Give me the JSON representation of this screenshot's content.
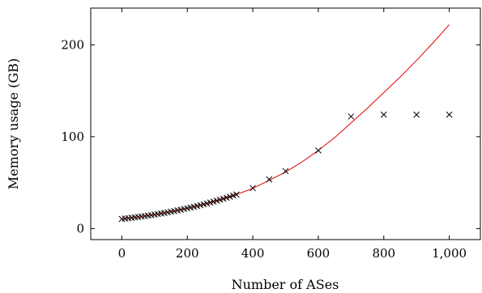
{
  "chart_data": {
    "type": "scatter",
    "xlabel": "Number of ASes",
    "ylabel": "Memory usage (GB)",
    "xlim": [
      -95,
      1095
    ],
    "ylim": [
      -12,
      240
    ],
    "x_ticks": [
      0,
      200,
      400,
      600,
      800,
      1000
    ],
    "x_tick_labels": [
      "0",
      "200",
      "400",
      "600",
      "800",
      "1,000"
    ],
    "y_ticks": [
      0,
      100,
      200
    ],
    "y_tick_labels": [
      "0",
      "100",
      "200"
    ],
    "grid": false,
    "series": [
      {
        "marker": "x",
        "color": "#000000",
        "x": [
          0,
          10,
          20,
          30,
          40,
          50,
          60,
          70,
          80,
          90,
          100,
          110,
          120,
          130,
          140,
          150,
          160,
          170,
          180,
          190,
          200,
          210,
          220,
          230,
          240,
          250,
          260,
          270,
          280,
          290,
          300,
          310,
          320,
          330,
          340,
          350,
          400,
          450,
          500,
          600,
          700,
          800,
          900,
          1000
        ],
        "y": [
          10.5,
          10.9,
          11.3,
          11.7,
          12.2,
          12.6,
          13.1,
          13.6,
          14.1,
          14.6,
          15.2,
          15.8,
          16.4,
          17.0,
          17.7,
          18.4,
          19.0,
          19.8,
          20.5,
          21.3,
          22.1,
          22.9,
          23.7,
          24.6,
          25.5,
          26.4,
          27.3,
          28.3,
          29.3,
          30.3,
          31.4,
          32.5,
          33.6,
          34.7,
          35.9,
          37.0,
          44.0,
          53.5,
          62.5,
          85.0,
          122.0,
          124.0,
          124.0,
          124.0
        ]
      },
      {
        "type": "line",
        "color": "#e00000",
        "x": [
          0,
          50,
          100,
          150,
          200,
          250,
          300,
          350,
          400,
          450,
          500,
          550,
          600,
          650,
          700,
          750,
          800,
          850,
          900,
          950,
          1000
        ],
        "y": [
          10.5,
          12.6,
          15.2,
          18.4,
          22.1,
          26.4,
          31.4,
          37.0,
          43.8,
          52.5,
          61.5,
          72.5,
          85.0,
          99.0,
          115.0,
          131.0,
          148.0,
          165.0,
          183.0,
          202.0,
          222.0
        ]
      }
    ]
  }
}
